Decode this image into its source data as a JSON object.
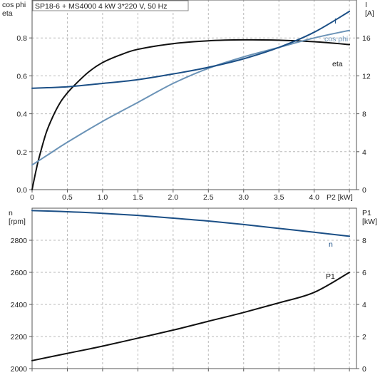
{
  "chart_data": [
    {
      "type": "line",
      "title": "SP18-6 + MS4000   4 kW   3*220 V, 50 Hz",
      "xlabel": "P2 [kW]",
      "ylabel_left": [
        "cos phi",
        "eta"
      ],
      "ylabel_right": [
        "I",
        "[A]"
      ],
      "xlim": [
        0,
        4.6
      ],
      "ylim_left": [
        0,
        1.0
      ],
      "ylim_right": [
        0,
        20
      ],
      "x_ticks": [
        "0",
        "0.5",
        "1.0",
        "1.5",
        "2.0",
        "2.5",
        "3.0",
        "3.5",
        "4.0"
      ],
      "y_left_ticks": [
        "0.0",
        "0.2",
        "0.4",
        "0.6",
        "0.8"
      ],
      "y_right_ticks": [
        "0",
        "4",
        "8",
        "12",
        "16"
      ],
      "grid": true,
      "series": [
        {
          "name": "eta",
          "axis": "left",
          "color": "#111111",
          "x": [
            0,
            0.05,
            0.1,
            0.2,
            0.3,
            0.4,
            0.5,
            0.6,
            0.8,
            1.0,
            1.25,
            1.5,
            2.0,
            2.5,
            3.0,
            3.5,
            4.0,
            4.5
          ],
          "y": [
            0.0,
            0.09,
            0.17,
            0.3,
            0.39,
            0.46,
            0.51,
            0.55,
            0.62,
            0.67,
            0.71,
            0.74,
            0.77,
            0.785,
            0.79,
            0.788,
            0.78,
            0.765
          ]
        },
        {
          "name": "cos phi",
          "axis": "left",
          "color": "#6b93b7",
          "x": [
            0,
            0.25,
            0.5,
            1.0,
            1.5,
            2.0,
            2.5,
            3.0,
            3.5,
            4.0,
            4.5
          ],
          "y": [
            0.13,
            0.19,
            0.25,
            0.36,
            0.46,
            0.56,
            0.64,
            0.7,
            0.75,
            0.8,
            0.84
          ]
        },
        {
          "name": "I",
          "axis": "right",
          "color": "#1b4f86",
          "x": [
            0,
            0.5,
            1.0,
            1.5,
            2.0,
            2.5,
            3.0,
            3.5,
            4.0,
            4.5
          ],
          "y": [
            10.7,
            10.85,
            11.2,
            11.6,
            12.2,
            12.9,
            13.8,
            15.0,
            16.6,
            18.8
          ]
        }
      ]
    },
    {
      "type": "line",
      "title": "",
      "xlim": [
        0,
        4.6
      ],
      "ylabel_left": [
        "n",
        "[rpm]"
      ],
      "ylabel_right": [
        "P1",
        "[kW]"
      ],
      "ylim_left": [
        2000,
        3000
      ],
      "ylim_right": [
        0,
        10
      ],
      "y_left_ticks": [
        "2000",
        "2200",
        "2400",
        "2600",
        "2800"
      ],
      "y_right_ticks": [
        "0",
        "2",
        "4",
        "6",
        "8"
      ],
      "grid": true,
      "series": [
        {
          "name": "n",
          "axis": "left",
          "color": "#1b4f86",
          "x": [
            0,
            0.5,
            1.0,
            1.5,
            2.0,
            2.5,
            3.0,
            3.5,
            4.0,
            4.5
          ],
          "y": [
            2985,
            2978,
            2968,
            2955,
            2938,
            2920,
            2898,
            2874,
            2850,
            2825
          ]
        },
        {
          "name": "P1",
          "axis": "right",
          "color": "#111111",
          "x": [
            0,
            0.5,
            1.0,
            1.5,
            2.0,
            2.5,
            3.0,
            3.5,
            4.0,
            4.5
          ],
          "y": [
            0.5,
            0.95,
            1.4,
            1.9,
            2.4,
            2.95,
            3.5,
            4.1,
            4.75,
            6.0
          ]
        }
      ]
    }
  ]
}
